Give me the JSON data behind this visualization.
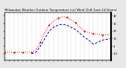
{
  "title": "Milwaukee Weather Outdoor Temperature (vs) Wind Chill (Last 24 Hours)",
  "bg_color": "#e8e8e8",
  "plot_bg": "#ffffff",
  "grid_color": "#999999",
  "x_ticks": [
    0,
    1,
    2,
    3,
    4,
    5,
    6,
    7,
    8,
    9,
    10,
    11,
    12,
    13,
    14,
    15,
    16,
    17,
    18,
    19,
    20,
    21,
    22,
    23,
    24
  ],
  "temp_x": [
    0,
    1,
    2,
    3,
    4,
    5,
    6,
    7,
    8,
    9,
    10,
    11,
    12,
    13,
    14,
    15,
    16,
    17,
    18,
    19,
    20,
    21,
    22,
    23,
    24
  ],
  "temp_y": [
    -8,
    -8,
    -8,
    -8,
    -8,
    -8,
    -8,
    -5,
    5,
    18,
    28,
    33,
    37,
    39,
    38,
    35,
    31,
    25,
    20,
    18,
    17,
    16,
    15,
    15,
    16
  ],
  "wind_x": [
    6,
    7,
    8,
    9,
    10,
    11,
    12,
    13,
    14,
    15,
    16,
    17,
    18,
    19,
    20,
    21,
    22,
    23,
    24
  ],
  "wind_y": [
    -10,
    -8,
    0,
    10,
    20,
    25,
    28,
    29,
    28,
    25,
    22,
    17,
    12,
    8,
    3,
    5,
    8,
    9,
    10
  ],
  "temp_color": "#dd0000",
  "wind_color": "#0000cc",
  "ylim": [
    -18,
    45
  ],
  "y_ticks": [
    40,
    30,
    20,
    10,
    0,
    -10
  ],
  "title_fontsize": 2.8,
  "tick_fontsize": 2.5,
  "line_width": 0.7
}
